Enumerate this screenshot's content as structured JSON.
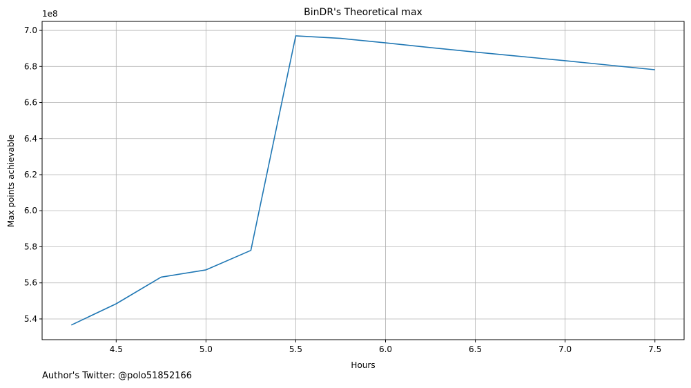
{
  "chart_data": {
    "type": "line",
    "title": "BinDR's Theoretical max",
    "xlabel": "Hours",
    "ylabel": "Max points achievable",
    "y_offset_label": "1e8",
    "y_scale": 100000000,
    "x": [
      4.25,
      4.5,
      4.75,
      5.0,
      5.25,
      5.5,
      5.75,
      6.0,
      6.25,
      6.5,
      6.75,
      7.0,
      7.25,
      7.5
    ],
    "series": [
      {
        "values": [
          536600000,
          548400000,
          563200000,
          567200000,
          578000000,
          697000000,
          695600000,
          693100000,
          690500000,
          688000000,
          685600000,
          683200000,
          680700000,
          678200000
        ],
        "color": "#1f77b4"
      }
    ],
    "xticks": [
      4.5,
      5.0,
      5.5,
      6.0,
      6.5,
      7.0,
      7.5
    ],
    "xtick_labels": [
      "4.5",
      "5.0",
      "5.5",
      "6.0",
      "6.5",
      "7.0",
      "7.5"
    ],
    "yticks": [
      540000000,
      560000000,
      580000000,
      600000000,
      620000000,
      640000000,
      660000000,
      680000000,
      700000000
    ],
    "ytick_labels": [
      "5.4",
      "5.6",
      "5.8",
      "6.0",
      "6.2",
      "6.4",
      "6.6",
      "6.8",
      "7.0"
    ],
    "xlim": [
      4.0875,
      7.6625
    ],
    "ylim": [
      528500000,
      705000000
    ],
    "grid": true,
    "gridColor": "#b0b0b0"
  },
  "footer": {
    "credit": "Author's Twitter: @polo51852166"
  }
}
